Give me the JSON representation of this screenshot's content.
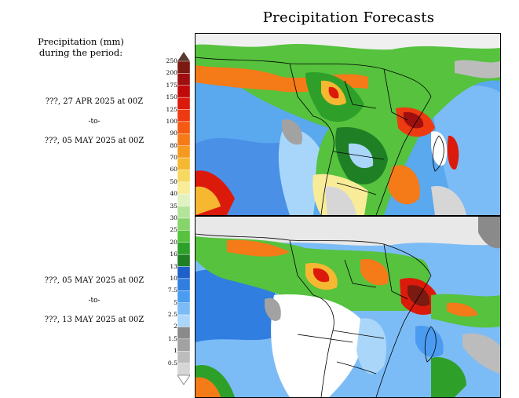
{
  "title": "Precipitation Forecasts",
  "legend": {
    "title_line1": "Precipitation (mm)",
    "title_line2": "during the period:",
    "levels": [
      "250",
      "200",
      "175",
      "150",
      "125",
      "100",
      "90",
      "80",
      "70",
      "60",
      "50",
      "40",
      "35",
      "30",
      "25",
      "20",
      "16",
      "13",
      "10",
      "7.5",
      "5",
      "2.5",
      "2",
      "1.5",
      "1",
      "0.5"
    ],
    "colors": [
      "#7a1a10",
      "#9e0f0f",
      "#c00a0a",
      "#dc1a0c",
      "#ee3a10",
      "#f55a12",
      "#f57a18",
      "#f59a20",
      "#f5b830",
      "#f7d860",
      "#f9ec98",
      "#dff2c0",
      "#b4e49a",
      "#86d46a",
      "#56c23e",
      "#2ea02a",
      "#1f7f24",
      "#1e5fc8",
      "#2f7ee0",
      "#4b9cf0",
      "#7cbcf6",
      "#aad6fa",
      "#8a8a8a",
      "#a2a2a2",
      "#bcbcbc",
      "#d6d6d6"
    ]
  },
  "periods": [
    {
      "start": "???, 27 APR 2025 at 00Z",
      "sep": "-to-",
      "end": "???, 05 MAY 2025 at 00Z"
    },
    {
      "start": "???, 05 MAY 2025 at 00Z",
      "sep": "-to-",
      "end": "???, 13 MAY 2025 at 00Z"
    }
  ]
}
